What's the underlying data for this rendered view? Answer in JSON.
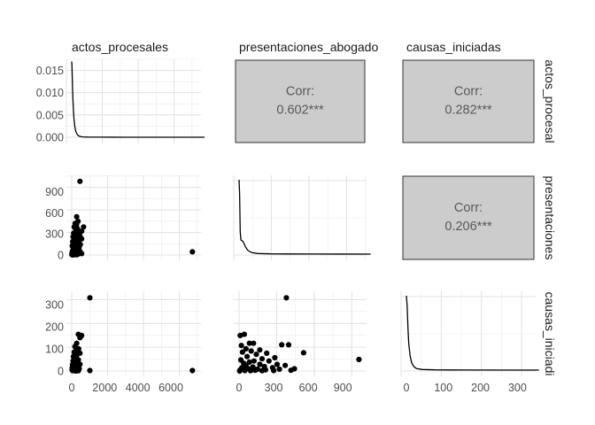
{
  "chart_data": {
    "type": "scatter",
    "variables": [
      "actos_procesales",
      "presentaciones_abogado",
      "causas_iniciadas"
    ],
    "column_strips": [
      "actos_procesales",
      "presentaciones_abogado",
      "causas_iniciadas"
    ],
    "row_strips": [
      "actos_procesal",
      "presentaciones",
      "causas_iniciadi"
    ],
    "ranges": {
      "actos_procesales": [
        0,
        7500
      ],
      "presentaciones_abogado": [
        0,
        1060
      ],
      "causas_iniciadas": [
        0,
        335
      ]
    },
    "ticks": {
      "actos_procesales": [
        "0",
        "2000",
        "4000",
        "6000"
      ],
      "presentaciones_abogado": [
        "0",
        "300",
        "600",
        "900"
      ],
      "causas_iniciadas": [
        "0",
        "100",
        "200",
        "300"
      ]
    },
    "density_y_ticks": [
      "0.000",
      "0.005",
      "0.010",
      "0.015"
    ],
    "density_ylim": [
      0,
      0.0175
    ],
    "correlations": [
      {
        "row": 0,
        "col": 1,
        "label": "Corr:",
        "value": "0.602***"
      },
      {
        "row": 0,
        "col": 2,
        "label": "Corr:",
        "value": "0.282***"
      },
      {
        "row": 1,
        "col": 2,
        "label": "Corr:",
        "value": "0.206***"
      }
    ],
    "densities": {
      "actos_procesales": [
        [
          0,
          0.017
        ],
        [
          15,
          0.0158
        ],
        [
          30,
          0.0135
        ],
        [
          50,
          0.0105
        ],
        [
          75,
          0.0078
        ],
        [
          100,
          0.0058
        ],
        [
          130,
          0.004
        ],
        [
          170,
          0.0025
        ],
        [
          220,
          0.0014
        ],
        [
          280,
          0.0008
        ],
        [
          350,
          0.0004
        ],
        [
          450,
          0.0002
        ],
        [
          600,
          8e-05
        ],
        [
          900,
          3e-05
        ],
        [
          1500,
          1e-05
        ],
        [
          3000,
          5e-06
        ],
        [
          7400,
          0.0
        ]
      ],
      "presentaciones_abogado": [
        [
          0,
          1.0
        ],
        [
          4,
          0.82
        ],
        [
          9,
          0.3
        ],
        [
          15,
          0.19
        ],
        [
          25,
          0.18
        ],
        [
          35,
          0.16
        ],
        [
          50,
          0.1
        ],
        [
          70,
          0.05
        ],
        [
          100,
          0.02
        ],
        [
          150,
          0.008
        ],
        [
          250,
          0.004
        ],
        [
          400,
          0.002
        ],
        [
          600,
          0.001
        ],
        [
          1050,
          0.0
        ]
      ],
      "causas_iniciadas": [
        [
          0,
          1.0
        ],
        [
          2,
          0.85
        ],
        [
          4,
          0.55
        ],
        [
          6,
          0.35
        ],
        [
          9,
          0.2
        ],
        [
          13,
          0.1
        ],
        [
          18,
          0.05
        ],
        [
          25,
          0.02
        ],
        [
          40,
          0.008
        ],
        [
          70,
          0.003
        ],
        [
          150,
          0.001
        ],
        [
          330,
          0.0
        ]
      ]
    },
    "scatter": {
      "presentaciones_vs_actos": [
        [
          500,
          1050
        ],
        [
          7300,
          45
        ],
        [
          300,
          545
        ],
        [
          380,
          480
        ],
        [
          210,
          450
        ],
        [
          290,
          430
        ],
        [
          150,
          400
        ],
        [
          720,
          400
        ],
        [
          600,
          340
        ],
        [
          330,
          380
        ],
        [
          420,
          320
        ],
        [
          250,
          360
        ],
        [
          120,
          310
        ],
        [
          380,
          300
        ],
        [
          180,
          280
        ],
        [
          500,
          270
        ],
        [
          80,
          260
        ],
        [
          270,
          250
        ],
        [
          600,
          230
        ],
        [
          350,
          200
        ],
        [
          140,
          210
        ],
        [
          420,
          180
        ],
        [
          60,
          190
        ],
        [
          250,
          170
        ],
        [
          520,
          150
        ],
        [
          330,
          140
        ],
        [
          100,
          150
        ],
        [
          200,
          120
        ],
        [
          450,
          110
        ],
        [
          30,
          130
        ],
        [
          160,
          95
        ],
        [
          300,
          90
        ],
        [
          400,
          70
        ],
        [
          90,
          80
        ],
        [
          230,
          60
        ],
        [
          500,
          50
        ],
        [
          50,
          55
        ],
        [
          350,
          40
        ],
        [
          150,
          30
        ],
        [
          20,
          35
        ],
        [
          270,
          25
        ],
        [
          600,
          20
        ],
        [
          100,
          15
        ],
        [
          380,
          12
        ],
        [
          40,
          10
        ],
        [
          200,
          8
        ],
        [
          10,
          5
        ],
        [
          120,
          3
        ],
        [
          300,
          2
        ],
        [
          60,
          1
        ]
      ],
      "causas_vs_actos": [
        [
          1100,
          330
        ],
        [
          400,
          165
        ],
        [
          600,
          160
        ],
        [
          500,
          150
        ],
        [
          300,
          125
        ],
        [
          200,
          110
        ],
        [
          420,
          100
        ],
        [
          350,
          95
        ],
        [
          250,
          90
        ],
        [
          150,
          85
        ],
        [
          500,
          80
        ],
        [
          300,
          70
        ],
        [
          100,
          65
        ],
        [
          200,
          55
        ],
        [
          400,
          50
        ],
        [
          80,
          45
        ],
        [
          300,
          40
        ],
        [
          150,
          35
        ],
        [
          500,
          30
        ],
        [
          50,
          28
        ],
        [
          250,
          25
        ],
        [
          120,
          20
        ],
        [
          380,
          18
        ],
        [
          30,
          15
        ],
        [
          200,
          12
        ],
        [
          450,
          10
        ],
        [
          90,
          8
        ],
        [
          300,
          6
        ],
        [
          20,
          5
        ],
        [
          160,
          3
        ],
        [
          1100,
          2
        ],
        [
          7300,
          2
        ],
        [
          60,
          1
        ],
        [
          400,
          1
        ],
        [
          250,
          0
        ]
      ],
      "causas_vs_presentaciones": [
        [
          410,
          330
        ],
        [
          1040,
          52
        ],
        [
          10,
          160
        ],
        [
          45,
          165
        ],
        [
          90,
          125
        ],
        [
          125,
          125
        ],
        [
          20,
          115
        ],
        [
          370,
          118
        ],
        [
          430,
          118
        ],
        [
          560,
          82
        ],
        [
          60,
          100
        ],
        [
          180,
          95
        ],
        [
          105,
          90
        ],
        [
          30,
          85
        ],
        [
          240,
          80
        ],
        [
          150,
          75
        ],
        [
          70,
          65
        ],
        [
          310,
          60
        ],
        [
          200,
          55
        ],
        [
          15,
          50
        ],
        [
          130,
          45
        ],
        [
          260,
          45
        ],
        [
          90,
          40
        ],
        [
          40,
          35
        ],
        [
          180,
          30
        ],
        [
          330,
          30
        ],
        [
          400,
          25
        ],
        [
          60,
          25
        ],
        [
          220,
          20
        ],
        [
          120,
          18
        ],
        [
          25,
          15
        ],
        [
          290,
          15
        ],
        [
          480,
          10
        ],
        [
          80,
          10
        ],
        [
          160,
          8
        ],
        [
          350,
          8
        ],
        [
          10,
          5
        ],
        [
          230,
          5
        ],
        [
          140,
          3
        ],
        [
          450,
          3
        ],
        [
          50,
          2
        ],
        [
          300,
          2
        ],
        [
          100,
          1
        ],
        [
          200,
          1
        ],
        [
          5,
          0
        ]
      ]
    }
  }
}
